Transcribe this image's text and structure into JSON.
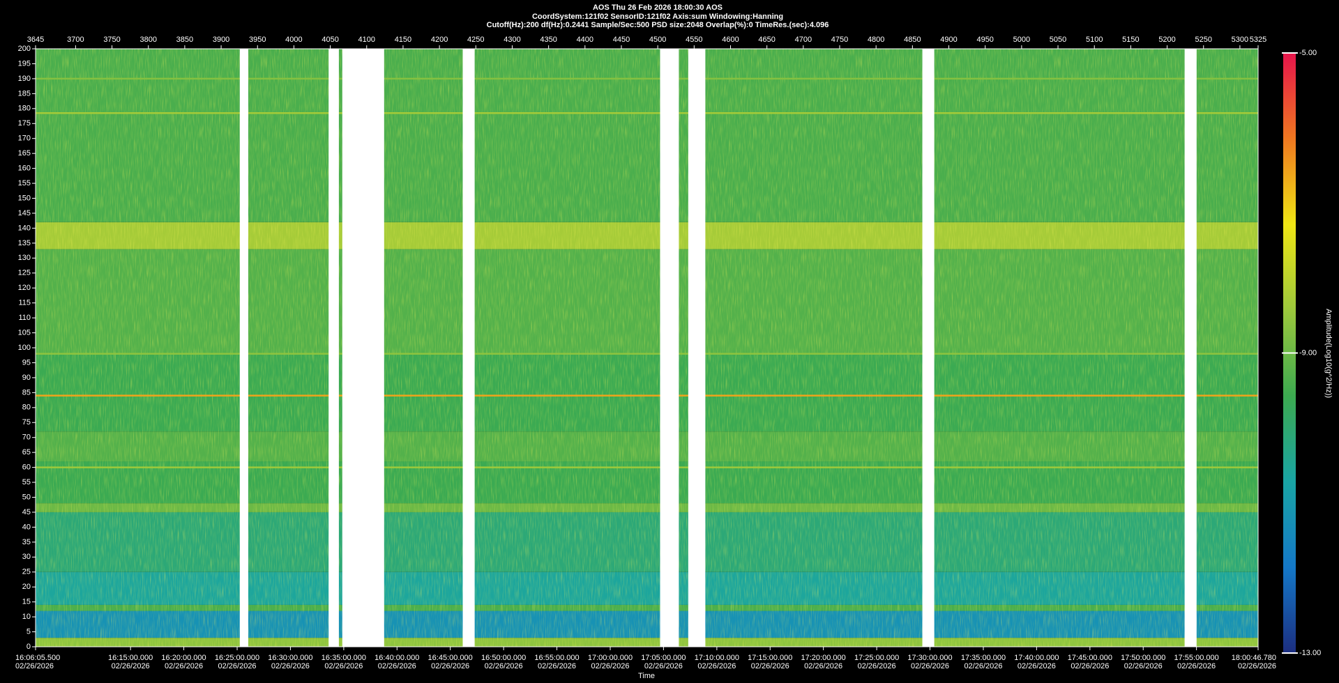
{
  "chart_data": {
    "type": "spectrogram",
    "title_lines": [
      "AOS  Thu 26 Feb 2026 18:00:30  AOS",
      "CoordSystem:121f02   SensorID:121f02    Axis:sum    Windowing:Hanning",
      "Cutoff(Hz):200     df(Hz):0.2441      Sample/Sec:500      PSD size:2048      Overlap(%):0        TimeRes.(sec):4.096"
    ],
    "xlabel": "Time",
    "colorbar_label": "Amplitude(Log10(g^2/Hz))",
    "xlim": [
      3645,
      5325
    ],
    "xticks": [
      3645,
      3700,
      3750,
      3800,
      3850,
      3900,
      3950,
      4000,
      4050,
      4100,
      4150,
      4200,
      4250,
      4300,
      4350,
      4400,
      4450,
      4500,
      4550,
      4600,
      4650,
      4700,
      4750,
      4800,
      4850,
      4900,
      4950,
      5000,
      5050,
      5100,
      5150,
      5200,
      5250,
      5300,
      5325
    ],
    "time_ticks": [
      {
        "value": 3645,
        "label": "16:06:05.500"
      },
      {
        "value": 3775.5,
        "label": "16:15:00.000"
      },
      {
        "value": 3848.7,
        "label": "16:20:00.000"
      },
      {
        "value": 3922.0,
        "label": "16:25:00.000"
      },
      {
        "value": 3995.2,
        "label": "16:30:00.000"
      },
      {
        "value": 4068.5,
        "label": "16:35:00.000"
      },
      {
        "value": 4141.7,
        "label": "16:40:00.000"
      },
      {
        "value": 4214.9,
        "label": "16:45:00.000"
      },
      {
        "value": 4288.2,
        "label": "16:50:00.000"
      },
      {
        "value": 4361.4,
        "label": "16:55:00.000"
      },
      {
        "value": 4434.7,
        "label": "17:00:00.000"
      },
      {
        "value": 4507.9,
        "label": "17:05:00.000"
      },
      {
        "value": 4581.2,
        "label": "17:10:00.000"
      },
      {
        "value": 4654.4,
        "label": "17:15:00.000"
      },
      {
        "value": 4727.6,
        "label": "17:20:00.000"
      },
      {
        "value": 4800.9,
        "label": "17:25:00.000"
      },
      {
        "value": 4874.1,
        "label": "17:30:00.000"
      },
      {
        "value": 4947.4,
        "label": "17:35:00.000"
      },
      {
        "value": 5020.6,
        "label": "17:40:00.000"
      },
      {
        "value": 5093.9,
        "label": "17:45:00.000"
      },
      {
        "value": 5167.1,
        "label": "17:50:00.000"
      },
      {
        "value": 5240.3,
        "label": "17:55:00.000"
      },
      {
        "value": 5325,
        "label": "18:00:46.780"
      }
    ],
    "date_label": "02/26/2026",
    "ylim": [
      0,
      200
    ],
    "yticks": [
      0,
      5,
      10,
      15,
      20,
      25,
      30,
      35,
      40,
      45,
      50,
      55,
      60,
      65,
      70,
      75,
      80,
      85,
      90,
      95,
      100,
      105,
      110,
      115,
      120,
      125,
      130,
      135,
      140,
      145,
      150,
      155,
      160,
      165,
      170,
      175,
      180,
      185,
      190,
      195,
      200
    ],
    "zlim": [
      -13,
      -5
    ],
    "zticks": [
      {
        "value": -13,
        "label": "-13.00"
      },
      {
        "value": -9,
        "label": "-9.00"
      },
      {
        "value": -5,
        "label": "-5.00"
      }
    ],
    "colormap": [
      "#1c2e80",
      "#1478c8",
      "#19a5a5",
      "#3caa50",
      "#9cc83c",
      "#f0e614",
      "#f07820",
      "#e6144b"
    ],
    "bands": [
      {
        "from": 0,
        "to": 3,
        "amp": -8.6
      },
      {
        "from": 3,
        "to": 12,
        "amp": -11.2
      },
      {
        "from": 12,
        "to": 14,
        "amp": -9.4
      },
      {
        "from": 14,
        "to": 25,
        "amp": -10.6
      },
      {
        "from": 25,
        "to": 45,
        "amp": -10.1
      },
      {
        "from": 45,
        "to": 48,
        "amp": -9.0
      },
      {
        "from": 48,
        "to": 62,
        "amp": -9.6
      },
      {
        "from": 62,
        "to": 72,
        "amp": -9.3
      },
      {
        "from": 72,
        "to": 98,
        "amp": -9.6
      },
      {
        "from": 98,
        "to": 133,
        "amp": -9.3
      },
      {
        "from": 133,
        "to": 142,
        "amp": -8.3
      },
      {
        "from": 142,
        "to": 200,
        "amp": -9.4
      }
    ],
    "tones": [
      {
        "freq": 60,
        "amp": -8.4
      },
      {
        "freq": 84,
        "amp": -6.6
      },
      {
        "freq": 98,
        "amp": -8.6
      },
      {
        "freq": 178.5,
        "amp": -8.3
      },
      {
        "freq": 190,
        "amp": -8.7
      }
    ],
    "gaps": [
      [
        3925.6,
        3937.3
      ],
      [
        4047.7,
        4061.8
      ],
      [
        4066.5,
        4124.0
      ],
      [
        4232.0,
        4248.4
      ],
      [
        4503.2,
        4529.0
      ],
      [
        4541.9,
        4565.4
      ],
      [
        4863.6,
        4880.0
      ],
      [
        5224.0,
        5240.5
      ]
    ]
  }
}
